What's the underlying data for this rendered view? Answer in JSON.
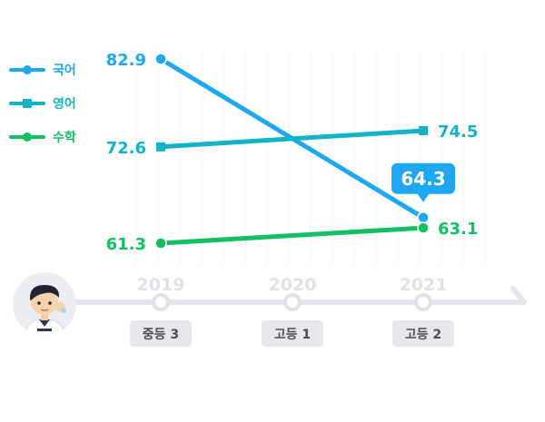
{
  "chart_data": {
    "type": "line",
    "categories": [
      "2019",
      "2020",
      "2021"
    ],
    "grade_labels": [
      "중등 3",
      "고등 1",
      "고등 2"
    ],
    "series": [
      {
        "name": "국어",
        "color": "#1ea7f2",
        "marker": "circle",
        "x": [
          "2019",
          "2021"
        ],
        "values": [
          82.9,
          64.3
        ]
      },
      {
        "name": "영어",
        "color": "#12b3c6",
        "marker": "square",
        "x": [
          "2019",
          "2021"
        ],
        "values": [
          72.6,
          74.5
        ]
      },
      {
        "name": "수학",
        "color": "#13bf62",
        "marker": "circle",
        "x": [
          "2019",
          "2021"
        ],
        "values": [
          61.3,
          63.1
        ]
      }
    ],
    "callout": {
      "series": "국어",
      "x": "2021",
      "label": "64.3"
    },
    "legend": "top-left",
    "grid": true
  },
  "avatar": {
    "icon": "student-avatar-icon"
  }
}
